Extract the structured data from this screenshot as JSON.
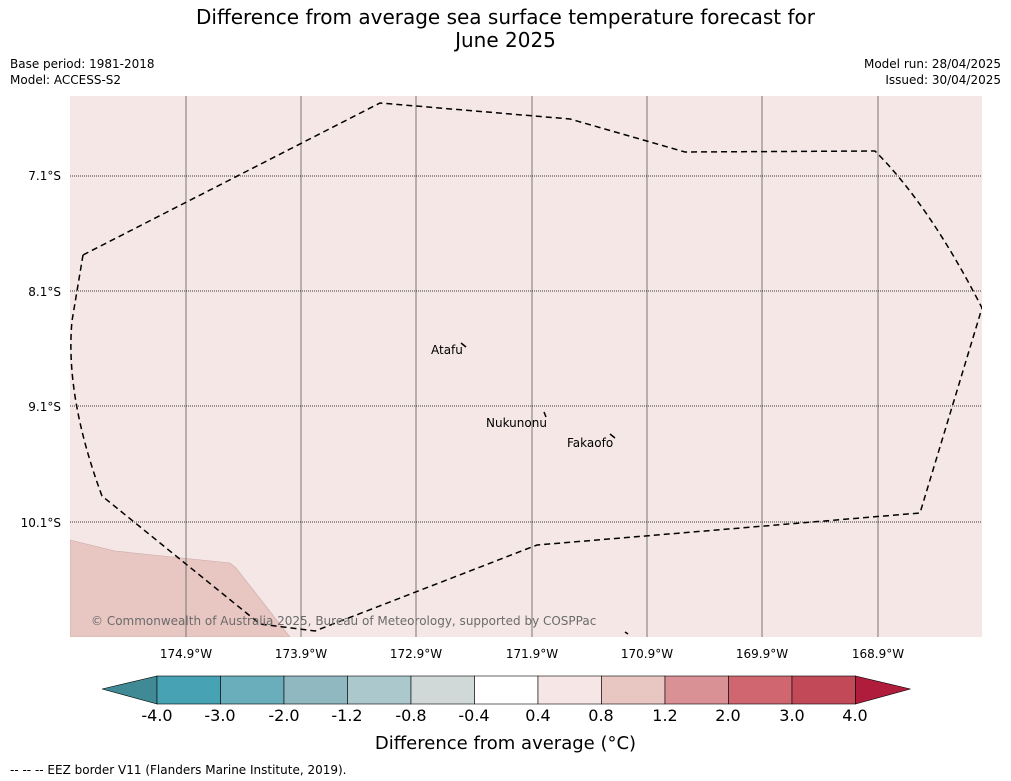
{
  "title": "Difference from average sea surface temperature forecast for",
  "title_line2": "June 2025",
  "meta": {
    "base_period": "Base period: 1981-2018",
    "model": "Model: ACCESS-S2",
    "model_run": "Model run: 28/04/2025",
    "issued": "Issued: 30/04/2025"
  },
  "map": {
    "lat_labels": [
      "7.1°S",
      "8.1°S",
      "9.1°S",
      "10.1°S"
    ],
    "lon_labels": [
      "174.9°W",
      "173.9°W",
      "172.9°W",
      "171.9°W",
      "170.9°W",
      "169.9°W",
      "168.9°W"
    ],
    "places": [
      "Atafu",
      "Nukunonu",
      "Fakaofo"
    ],
    "copyright": "© Commonwealth of Australia 2025, Bureau of Meteorology, supported by COSPPac",
    "background_color": "#f4e7e6",
    "anomaly_region_color": "#e8c6c2"
  },
  "colorbar": {
    "ticks": [
      "-4.0",
      "-3.0",
      "-2.0",
      "-1.2",
      "-0.8",
      "-0.4",
      "0.4",
      "0.8",
      "1.2",
      "2.0",
      "3.0",
      "4.0"
    ],
    "colors": [
      "#3f8a95",
      "#47a3b3",
      "#6aaebb",
      "#8fb8c1",
      "#abc8cc",
      "#d1d8d8",
      "#ffffff",
      "#f6e6e5",
      "#e8c6c2",
      "#d99196",
      "#cf6670",
      "#c24a58",
      "#b01c3b"
    ],
    "label": "Difference from average (°C)"
  },
  "footer": "--  --  -- EEZ border V11 (Flanders Marine Institute, 2019)."
}
